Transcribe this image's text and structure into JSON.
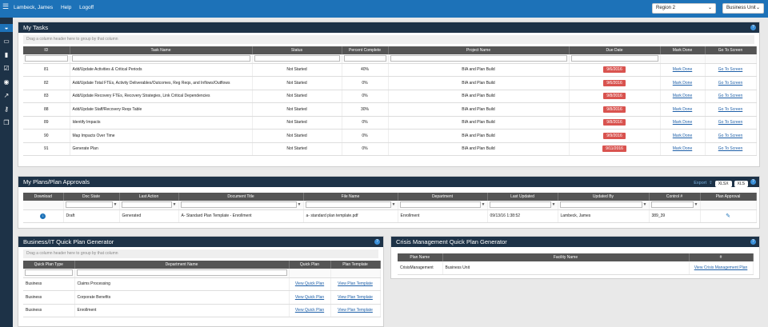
{
  "topbar": {
    "user": "Lambeck, James",
    "help": "Help",
    "logoff": "Logoff",
    "region": "Region 2",
    "unit": "Business Unit"
  },
  "sidebar": {
    "icons": [
      "dashboard-icon",
      "laptop-icon",
      "bookmark-icon",
      "checklist-icon",
      "eye-icon",
      "chart-icon",
      "keys-icon",
      "documents-icon"
    ]
  },
  "tasks": {
    "title": "My Tasks",
    "group_hint": "Drag a column header here to group by that column",
    "columns": [
      "ID",
      "Task Name",
      "Status",
      "Percent Complete",
      "Project Name",
      "Due Date",
      "Mark Done",
      "Go To Screen"
    ],
    "rows": [
      {
        "id": "81",
        "name": "Add/Update Activities & Critical Periods",
        "status": "Not Started",
        "pct": "40%",
        "project": "BIA and Plan Build",
        "due": "9/6/2016",
        "done": "Mark Done",
        "go": "Go To Screen"
      },
      {
        "id": "82",
        "name": "Add/Update Total FTEs, Activity Deliverables/Outcomes, Reg Reqs, and Inflows/Outflows",
        "status": "Not Started",
        "pct": "0%",
        "project": "BIA and Plan Build",
        "due": "9/6/2016",
        "done": "Mark Done",
        "go": "Go To Screen"
      },
      {
        "id": "83",
        "name": "Add/Update Recovery FTEs, Recovery Strategies, Link Critical Dependencies",
        "status": "Not Started",
        "pct": "0%",
        "project": "BIA and Plan Build",
        "due": "9/8/2016",
        "done": "Mark Done",
        "go": "Go To Screen"
      },
      {
        "id": "88",
        "name": "Add/Update Staff/Recovery Reqs Table",
        "status": "Not Started",
        "pct": "30%",
        "project": "BIA and Plan Build",
        "due": "9/8/2016",
        "done": "Mark Done",
        "go": "Go To Screen"
      },
      {
        "id": "89",
        "name": "Identify Impacts",
        "status": "Not Started",
        "pct": "0%",
        "project": "BIA and Plan Build",
        "due": "9/8/2016",
        "done": "Mark Done",
        "go": "Go To Screen"
      },
      {
        "id": "90",
        "name": "Map Impacts Over Time",
        "status": "Not Started",
        "pct": "0%",
        "project": "BIA and Plan Build",
        "due": "9/9/2016",
        "done": "Mark Done",
        "go": "Go To Screen"
      },
      {
        "id": "91",
        "name": "Generate Plan",
        "status": "Not Started",
        "pct": "0%",
        "project": "BIA and Plan Build",
        "due": "9/11/2016",
        "done": "Mark Done",
        "go": "Go To Screen"
      }
    ]
  },
  "approvals": {
    "title": "My Plans/Plan Approvals",
    "export": "Export",
    "xlsx": "XLSX",
    "xls": "XLS",
    "columns": [
      "Download",
      "Doc State",
      "Last Action",
      "Document Title",
      "File Name",
      "Department",
      "Last Updated",
      "Updated By",
      "Control #",
      "Plan Approval"
    ],
    "row": {
      "state": "Draft",
      "action": "Generated",
      "doc_title": "A- Standard Plan Template - Enrollment",
      "file": "a- standard plan template.pdf",
      "dept": "Enrollment",
      "updated": "09/13/16 1:38:52",
      "by": "Lambeck, James",
      "control": "389_39"
    }
  },
  "quick": {
    "title": "Business/IT Quick Plan Generator",
    "group_hint": "Drag a column header here to group by that column",
    "columns": [
      "Quick Plan Type",
      "Department Name",
      "Quick Plan",
      "Plan Template"
    ],
    "rows": [
      {
        "type": "Business",
        "dept": "Claims Processing",
        "qp": "View Quick Plan",
        "pt": "View Plan Template"
      },
      {
        "type": "Business",
        "dept": "Corporate Benefits",
        "qp": "View Quick Plan",
        "pt": "View Plan Template"
      },
      {
        "type": "Business",
        "dept": "Enrollment",
        "qp": "View Quick Plan",
        "pt": "View Plan Template"
      }
    ]
  },
  "crisis": {
    "title": "Crisis Management Quick Plan Generator",
    "columns": [
      "Plan Name",
      "Facility Name",
      "#"
    ],
    "row": {
      "plan": "CrisisManagement",
      "facility": "Business Unit",
      "link": "View Crisis Management Plan"
    }
  }
}
